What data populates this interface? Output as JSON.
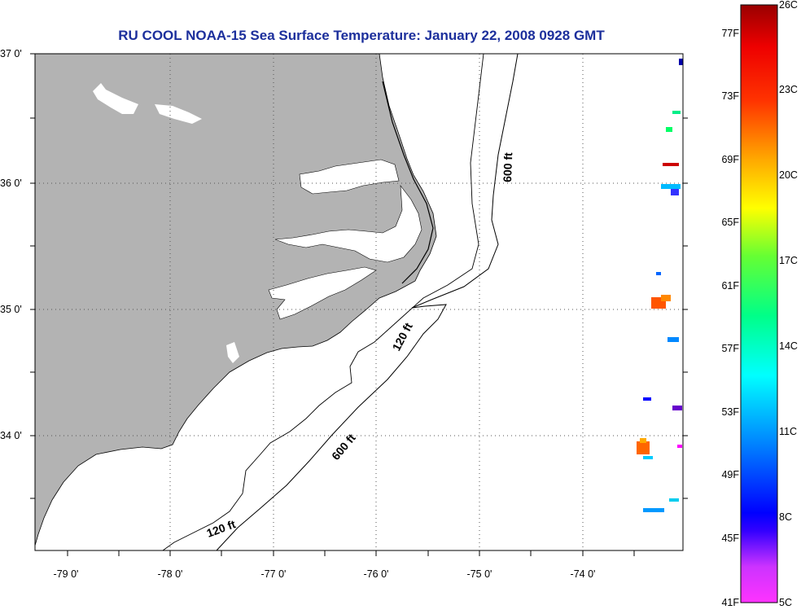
{
  "title": "RU COOL  NOAA-15  Sea Surface Temperature:  January 22, 2008 0928 GMT",
  "lat_labels": [
    "37 0'",
    "36 0'",
    "35 0'",
    "34 0'"
  ],
  "lon_labels": [
    "-79 0'",
    "-78 0'",
    "-77 0'",
    "-76 0'",
    "-75 0'",
    "-74 0'"
  ],
  "contour_labels": {
    "c600_north": "600 ft",
    "c600_south": "600 ft",
    "c120_mid": "120 ft",
    "c120_south": "120 ft"
  },
  "colorbar": {
    "fahrenheit": [
      "77F",
      "73F",
      "69F",
      "65F",
      "61F",
      "57F",
      "53F",
      "49F",
      "45F",
      "41F"
    ],
    "celsius": [
      "26C",
      "23C",
      "20C",
      "17C",
      "14C",
      "11C",
      "8C",
      "5C"
    ]
  },
  "colors": {
    "title": "#1c2f9c",
    "land": "#b3b3b3",
    "ocean": "#ffffff"
  }
}
